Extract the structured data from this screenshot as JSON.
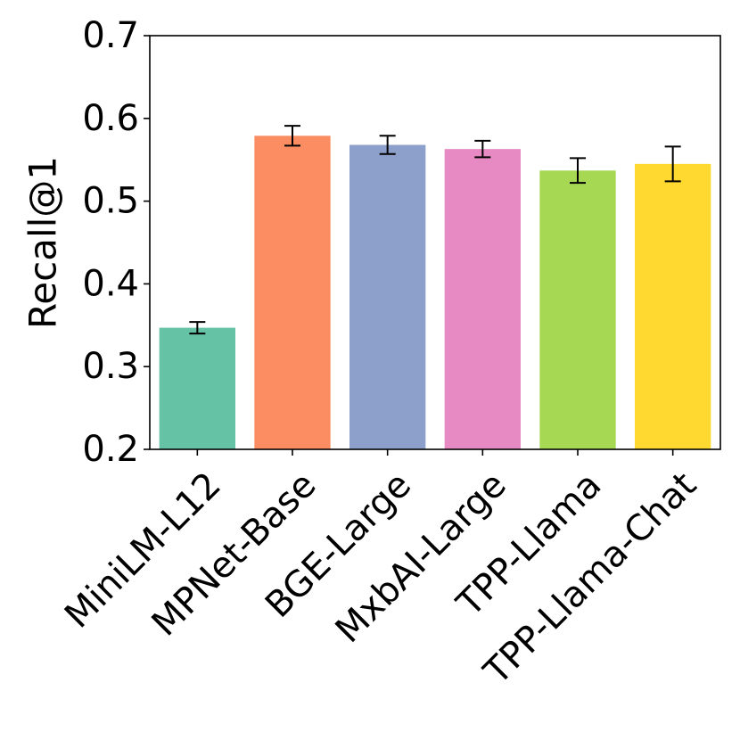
{
  "chart_data": {
    "type": "bar",
    "title": "",
    "xlabel": "",
    "ylabel": "Recall@1",
    "ylim": [
      0.2,
      0.7
    ],
    "yticks": [
      "0.2",
      "0.3",
      "0.4",
      "0.5",
      "0.6",
      "0.7"
    ],
    "grid": false,
    "categories": [
      "MiniLM-L12",
      "MPNet-Base",
      "BGE-Large",
      "MxbAI-Large",
      "TPP-Llama",
      "TPP-Llama-Chat"
    ],
    "values": [
      0.347,
      0.579,
      0.568,
      0.563,
      0.537,
      0.545
    ],
    "errors": [
      0.007,
      0.012,
      0.011,
      0.01,
      0.015,
      0.021
    ],
    "colors": [
      "#66c2a5",
      "#fc8d62",
      "#8da0cb",
      "#e78ac3",
      "#a6d854",
      "#ffd92f"
    ]
  }
}
